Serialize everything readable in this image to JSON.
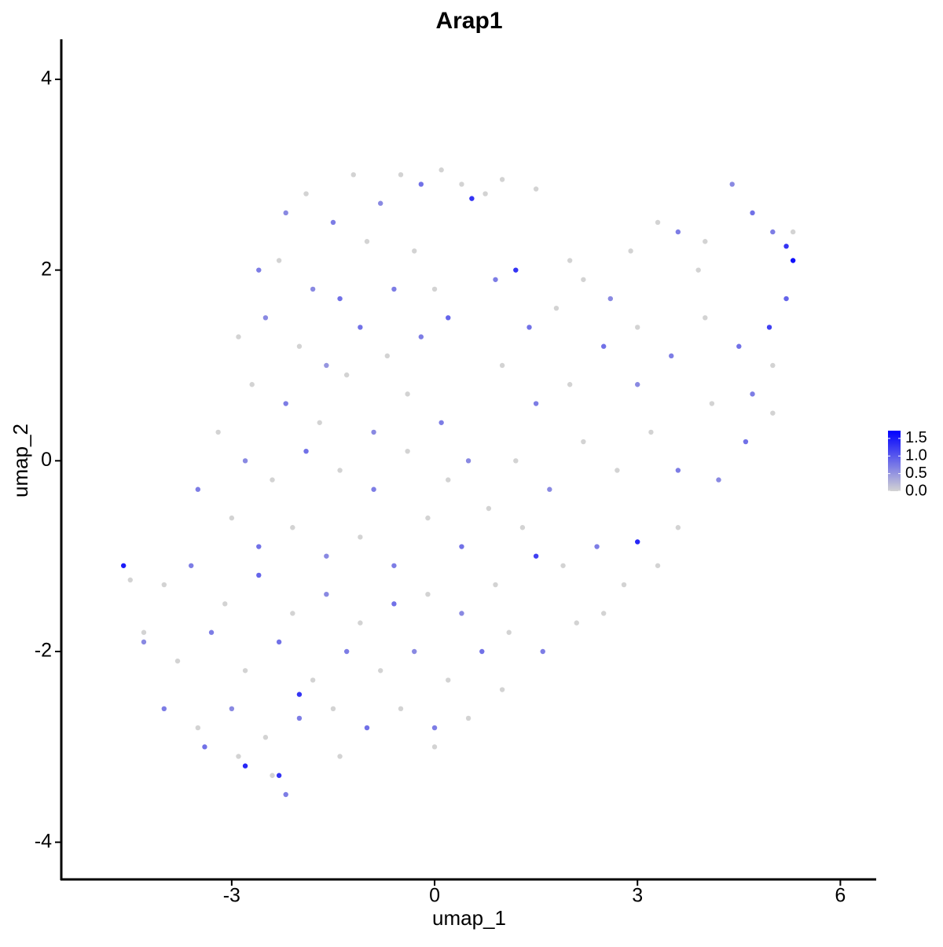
{
  "chart_data": {
    "type": "scatter",
    "title": "Arap1",
    "x_label": "umap_1",
    "y_label": "umap_2",
    "xlim": [
      -5.52,
      6.53
    ],
    "ylim": [
      -4.39,
      4.42
    ],
    "xticks": [
      -3,
      0,
      3,
      6
    ],
    "yticks": [
      -4,
      -2,
      0,
      2,
      4
    ],
    "color_low": "#d3d3d3",
    "color_high": "#0000ff",
    "color_lim": [
      0,
      1.72
    ],
    "color_ticks": [
      {
        "value": 0,
        "label": "0.0"
      },
      0.5,
      {
        "value": 1,
        "label": "1.0"
      },
      1.5
    ],
    "x": [
      -2.2,
      -1.9,
      -1.5,
      -1.2,
      -0.8,
      -0.5,
      -0.2,
      0.1,
      0.4,
      0.75,
      -2.6,
      -2.3,
      -1.8,
      -1.4,
      -1.0,
      -0.6,
      -0.3,
      0.0,
      -2.9,
      -2.5,
      -2.0,
      -1.6,
      -1.1,
      -0.7,
      -0.2,
      0.2,
      -2.7,
      -2.2,
      -1.7,
      -1.3,
      -0.9,
      -0.4,
      0.1,
      -3.2,
      -2.8,
      -2.4,
      -1.9,
      -1.4,
      -0.9,
      -0.4,
      0.2,
      0.5,
      -3.5,
      -3.0,
      -2.6,
      -2.1,
      -1.6,
      -1.1,
      -0.6,
      -0.1,
      0.4,
      0.8,
      -4.0,
      -3.6,
      -3.1,
      -2.6,
      -2.1,
      -1.6,
      -1.1,
      -0.6,
      -0.1,
      0.4,
      0.9,
      -4.3,
      -3.8,
      -3.3,
      -2.8,
      -2.3,
      -1.8,
      -1.3,
      -0.8,
      -0.3,
      0.2,
      0.7,
      -4.0,
      -3.5,
      -3.0,
      -2.5,
      -2.0,
      -1.5,
      -1.0,
      -0.5,
      0.0,
      0.5,
      -3.4,
      -2.9,
      -2.4,
      -2.2,
      -1.4,
      0.0,
      -4.5,
      -4.3,
      1.0,
      1.5,
      0.9,
      1.4,
      1.8,
      2.2,
      2.6,
      2.9,
      3.3,
      3.6,
      4.0,
      4.4,
      4.7,
      5.0,
      5.3,
      1.0,
      1.5,
      2.0,
      2.5,
      3.0,
      3.5,
      4.0,
      4.5,
      5.0,
      5.2,
      1.2,
      1.7,
      2.2,
      2.7,
      3.2,
      3.6,
      4.1,
      4.6,
      5.0,
      4.2,
      1.3,
      1.9,
      2.4,
      2.8,
      3.3,
      3.6,
      1.1,
      1.6,
      2.1,
      2.5,
      1.0,
      4.7,
      3.9,
      2.0,
      3.0,
      -4.6,
      5.3,
      -2.8,
      -2.3,
      0.55,
      1.2,
      -2.0,
      5.2,
      3.0,
      1.5,
      4.95
    ],
    "series": [
      {
        "name": "Arap1",
        "values": [
          2.6,
          2.8,
          2.5,
          3.0,
          2.7,
          3.0,
          2.9,
          3.05,
          2.9,
          2.8,
          2.0,
          2.1,
          1.8,
          1.7,
          2.3,
          1.8,
          2.2,
          1.8,
          1.3,
          1.5,
          1.2,
          1.0,
          1.4,
          1.1,
          1.3,
          1.5,
          0.8,
          0.6,
          0.4,
          0.9,
          0.3,
          0.7,
          0.4,
          0.3,
          0.0,
          -0.2,
          0.1,
          -0.1,
          -0.3,
          0.1,
          -0.2,
          0.0,
          -0.3,
          -0.6,
          -0.9,
          -0.7,
          -1.0,
          -0.8,
          -1.1,
          -0.6,
          -0.9,
          -0.5,
          -1.3,
          -1.1,
          -1.5,
          -1.2,
          -1.6,
          -1.4,
          -1.7,
          -1.5,
          -1.4,
          -1.6,
          -1.3,
          -1.9,
          -2.1,
          -1.8,
          -2.2,
          -1.9,
          -2.3,
          -2.0,
          -2.2,
          -2.0,
          -2.3,
          -2.0,
          -2.6,
          -2.8,
          -2.6,
          -2.9,
          -2.7,
          -2.6,
          -2.8,
          -2.6,
          -2.8,
          -2.7,
          -3.0,
          -3.1,
          -3.3,
          -3.5,
          -3.1,
          -3.0,
          -1.25,
          -1.8,
          2.95,
          2.85,
          1.9,
          1.4,
          1.6,
          1.9,
          1.7,
          2.2,
          2.5,
          2.4,
          2.3,
          2.9,
          2.6,
          2.4,
          2.4,
          1.0,
          0.6,
          0.8,
          1.2,
          1.4,
          1.1,
          1.5,
          1.2,
          1.0,
          1.7,
          0.0,
          -0.3,
          0.2,
          -0.1,
          0.3,
          -0.1,
          0.6,
          0.2,
          0.5,
          -0.2,
          -0.7,
          -1.1,
          -0.9,
          -1.3,
          -1.1,
          -0.7,
          -1.8,
          -2.0,
          -1.7,
          -1.6,
          -2.4,
          0.7,
          2.0,
          2.1,
          0.8,
          -1.1,
          2.1,
          -3.2,
          -3.3,
          2.75,
          2.0,
          -2.45,
          2.25,
          -0.85,
          -1.0,
          1.4
        ],
        "expression": [
          0.6,
          0,
          0.7,
          0,
          0.6,
          0,
          0.8,
          0,
          0,
          0,
          0.7,
          0,
          0.6,
          0.8,
          0,
          0.7,
          0,
          0,
          0,
          0.6,
          0,
          0.5,
          0.8,
          0,
          0.7,
          0.9,
          0,
          0.7,
          0,
          0,
          0.6,
          0,
          0.7,
          0,
          0.6,
          0,
          0.8,
          0,
          0.7,
          0,
          0,
          0.6,
          0.7,
          0,
          0.8,
          0,
          0.6,
          0,
          0.7,
          0,
          0.8,
          0,
          0,
          0.7,
          0,
          0.9,
          0,
          0.6,
          0,
          0.8,
          0,
          0.6,
          0,
          0.6,
          0,
          0.7,
          0,
          0.8,
          0,
          0.7,
          0,
          0.6,
          0,
          0.8,
          0.7,
          0,
          0.6,
          0,
          0.7,
          0,
          0.8,
          0,
          0.7,
          0,
          0.8,
          0,
          0,
          0.7,
          0,
          0,
          0,
          0,
          0,
          0,
          0.7,
          0.8,
          0,
          0,
          0.6,
          0,
          0,
          0.7,
          0,
          0.6,
          0.8,
          0.7,
          0,
          0,
          0.7,
          0,
          0.8,
          0,
          0.7,
          0,
          0.8,
          0,
          0.9,
          0,
          0.6,
          0,
          0,
          0,
          0.7,
          0,
          0.8,
          0,
          0.6,
          0,
          0,
          0.7,
          0,
          0,
          0,
          0,
          0.7,
          0,
          0,
          0,
          0.7,
          0,
          0,
          0.6,
          1.5,
          1.6,
          1.4,
          1.3,
          1.3,
          1.3,
          1.3,
          1.3,
          1.4,
          1.2,
          1.2
        ]
      }
    ]
  }
}
